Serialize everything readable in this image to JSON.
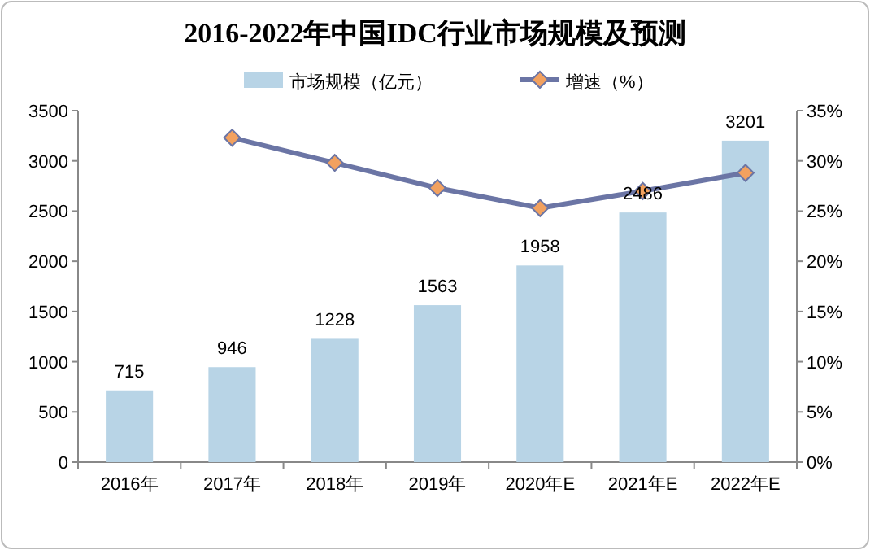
{
  "chart_data": {
    "type": "bar",
    "title": "2016-2022年中国IDC行业市场规模及预测",
    "categories": [
      "2016年",
      "2017年",
      "2018年",
      "2019年",
      "2020年E",
      "2021年E",
      "2022年E"
    ],
    "series": [
      {
        "name": "市场规模（亿元）",
        "color": "#b8d4e6",
        "values": [
          715,
          946,
          1228,
          1563,
          1958,
          2486,
          3201
        ],
        "value_labels": [
          "715",
          "946",
          "1228",
          "1563",
          "1958",
          "2486",
          "3201"
        ]
      },
      {
        "name": "增速（%）",
        "type": "line",
        "axis": "y2",
        "color": "#6b75a5",
        "marker": "diamond",
        "values": [
          null,
          32.3,
          29.8,
          27.3,
          25.3,
          27.0,
          28.8
        ]
      }
    ],
    "ylim": [
      0,
      3500
    ],
    "yticks": [
      0,
      500,
      1000,
      1500,
      2000,
      2500,
      3000,
      3500
    ],
    "y2lim": [
      0,
      35
    ],
    "y2ticks": [
      {
        "value": 0,
        "label": "0%"
      },
      {
        "value": 5,
        "label": "5%"
      },
      {
        "value": 10,
        "label": "10%"
      },
      {
        "value": 15,
        "label": "15%"
      },
      {
        "value": 20,
        "label": "20%"
      },
      {
        "value": 25,
        "label": "25%"
      },
      {
        "value": 30,
        "label": "30%"
      },
      {
        "value": 35,
        "label": "35%"
      }
    ],
    "grid": false,
    "legend": "top"
  }
}
